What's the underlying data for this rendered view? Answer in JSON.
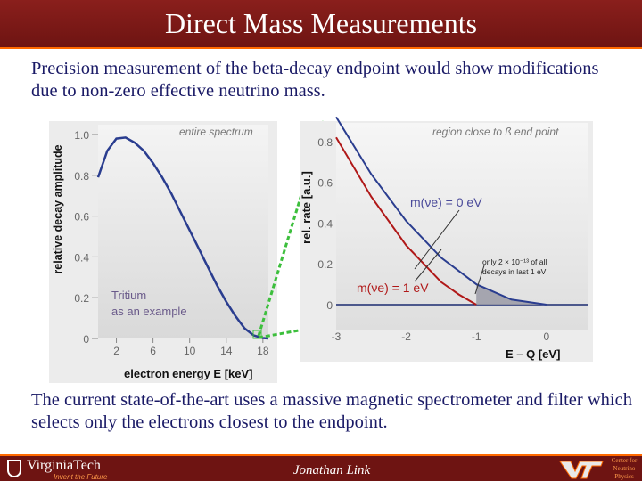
{
  "slide": {
    "title": "Direct Mass Measurements",
    "paragraph1": "Precision measurement of the beta-decay endpoint would show modifications due to non-zero effective neutrino mass.",
    "paragraph2": "The current state-of-the-art uses a massive magnetic spectrometer and filter which selects only the electrons closest to the endpoint."
  },
  "footer": {
    "university": "VirginiaTech",
    "tagline": "Invent the Future",
    "author": "Jonathan Link",
    "center_name": "Center for Neutrino Physics"
  },
  "colors": {
    "title_bar": "#6e1412",
    "accent": "#ff6a00",
    "body_text": "#1a1a66",
    "curve_blue": "#2a3d8f",
    "curve_red": "#b01818",
    "zoom_lines": "#3dbf3d"
  },
  "chart_data": [
    {
      "type": "line",
      "title": "entire spectrum",
      "xlabel": "electron energy E [keV]",
      "ylabel": "relative decay amplitude",
      "xlim": [
        0,
        18.6
      ],
      "ylim": [
        0,
        1.0
      ],
      "x_ticks": [
        2,
        6,
        10,
        14,
        18
      ],
      "y_ticks": [
        "0",
        "0.2",
        "0.4",
        "0.6",
        "0.8",
        "1.0"
      ],
      "annotation": [
        "Tritium",
        "as an example"
      ],
      "series": [
        {
          "x": [
            0,
            1,
            2,
            3,
            4,
            5,
            6,
            7,
            8,
            9,
            10,
            11,
            12,
            13,
            14,
            15,
            16,
            17,
            18,
            18.6
          ],
          "values": [
            0.79,
            0.92,
            0.98,
            0.985,
            0.96,
            0.92,
            0.86,
            0.79,
            0.71,
            0.62,
            0.53,
            0.44,
            0.35,
            0.26,
            0.18,
            0.11,
            0.05,
            0.015,
            0.002,
            0
          ]
        }
      ]
    },
    {
      "type": "line",
      "title": "region close to ß end point",
      "xlabel": "E – Q [eV]",
      "ylabel": "rel. rate [a.u.]",
      "xlim": [
        -3,
        0.6
      ],
      "ylim": [
        0,
        0.9
      ],
      "x_ticks": [
        "-3",
        "-2",
        "-1",
        "0"
      ],
      "y_ticks": [
        "0",
        "0.2",
        "0.4",
        "0.6",
        "0.8"
      ],
      "annotations": [
        "only 2 × 10⁻¹³ of all",
        "decays in last 1 eV"
      ],
      "series": [
        {
          "name": "m(νe) = 0 eV",
          "x": [
            -3,
            -2.5,
            -2,
            -1.5,
            -1,
            -0.5,
            0
          ],
          "values": [
            0.92,
            0.64,
            0.41,
            0.23,
            0.1,
            0.025,
            0
          ]
        },
        {
          "name": "m(νe) = 1 eV",
          "x": [
            -3,
            -2.5,
            -2,
            -1.5,
            -1.25,
            -1
          ],
          "values": [
            0.82,
            0.53,
            0.29,
            0.11,
            0.05,
            0
          ]
        }
      ]
    }
  ]
}
